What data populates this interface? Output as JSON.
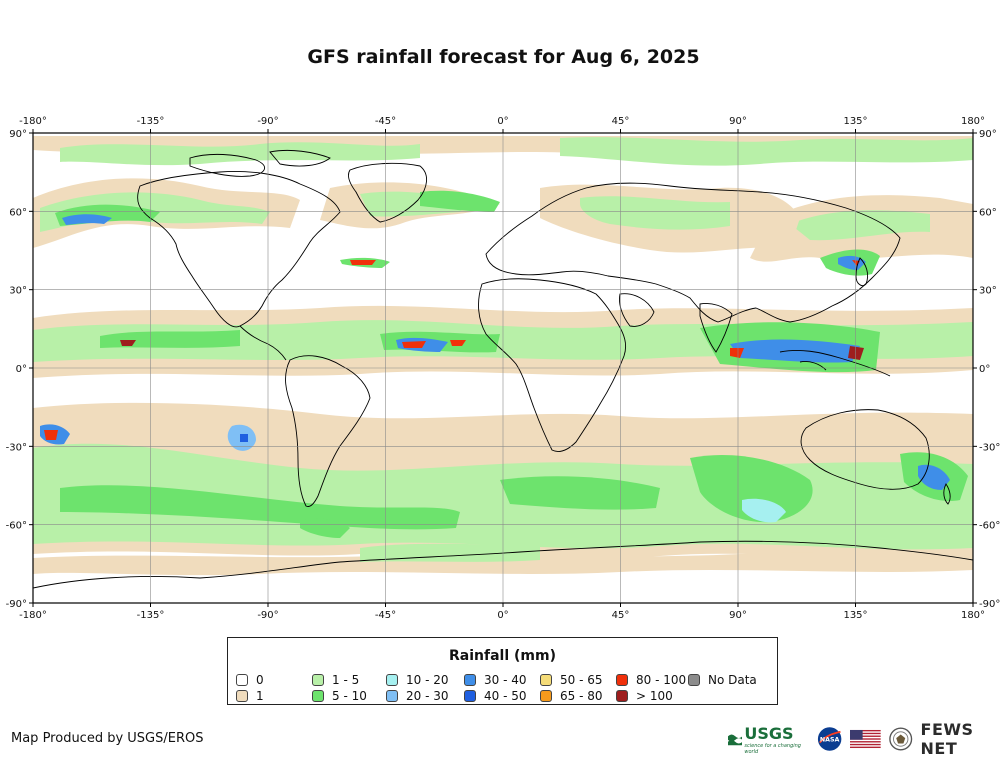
{
  "title": "GFS rainfall forecast for Aug 6, 2025",
  "map": {
    "x_ticks": [
      "-180°",
      "-135°",
      "-90°",
      "-45°",
      "0°",
      "45°",
      "90°",
      "135°",
      "180°"
    ],
    "y_ticks": [
      "90°",
      "60°",
      "30°",
      "0°",
      "-30°",
      "-60°",
      "-90°"
    ],
    "x_range": [
      -180,
      180
    ],
    "y_range": [
      -90,
      90
    ],
    "grid": true
  },
  "legend": {
    "title": "Rainfall (mm)",
    "items": [
      {
        "label": "0",
        "color": "#ffffff"
      },
      {
        "label": "1",
        "color": "#f0dcbd"
      },
      {
        "label": "1 - 5",
        "color": "#b8f0a8"
      },
      {
        "label": "5 - 10",
        "color": "#6de36d"
      },
      {
        "label": "10 - 20",
        "color": "#a6f0f0"
      },
      {
        "label": "20 - 30",
        "color": "#7fbff5"
      },
      {
        "label": "30 - 40",
        "color": "#3f8ee8"
      },
      {
        "label": "40 - 50",
        "color": "#1f5fe0"
      },
      {
        "label": "50 - 65",
        "color": "#f5dc78"
      },
      {
        "label": "65 - 80",
        "color": "#f59a1c"
      },
      {
        "label": "80 - 100",
        "color": "#f0300a"
      },
      {
        "label": "> 100",
        "color": "#9e1e1e"
      },
      {
        "label": "No Data",
        "color": "#8c8c8c"
      }
    ]
  },
  "footer": {
    "credit": "Map Produced by USGS/EROS",
    "usgs_logo": "USGS",
    "usgs_tagline": "science for a changing world",
    "nasa_logo": "NASA",
    "fews_logo": "FEWS NET"
  }
}
